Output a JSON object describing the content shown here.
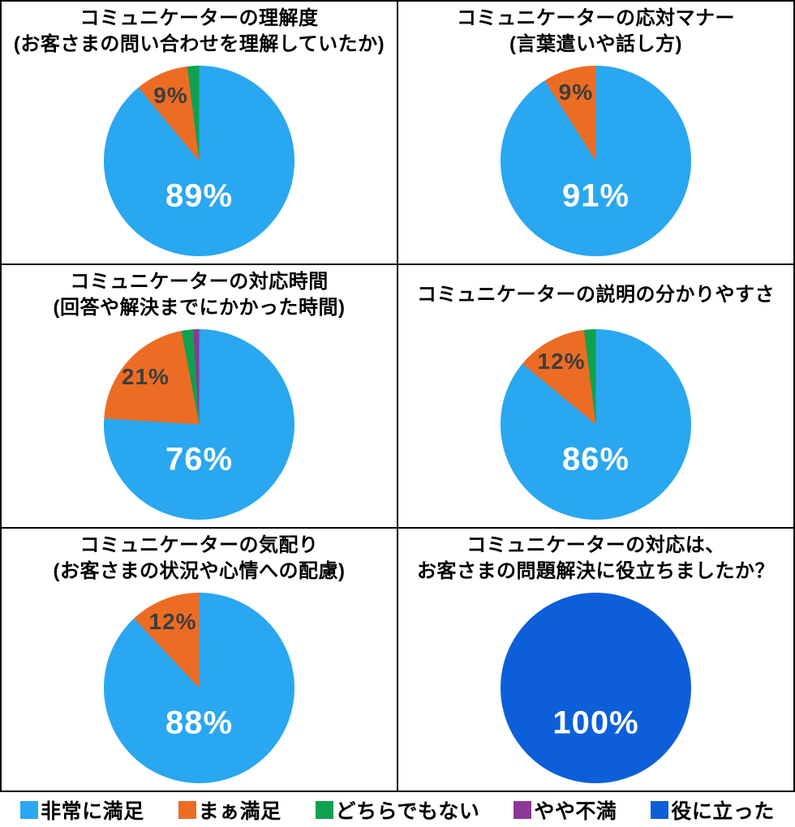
{
  "page": {
    "background_color": "#ffffff",
    "grid_line_color": "#000000"
  },
  "palette": {
    "very_satisfied_blue": "#29A7F0",
    "somewhat_satisfied_orange": "#ED6C23",
    "neutral_green": "#10A14E",
    "somewhat_dissatisfied_purple": "#8C3896",
    "helpful_royal_blue": "#0C5FD8",
    "main_label_color": "#FFFFFF",
    "outer_label_color": "#3D3D3D",
    "title_color": "#000000"
  },
  "legend": {
    "items": [
      {
        "label": "非常に満足",
        "color": "#29A7F0"
      },
      {
        "label": "まぁ満足",
        "color": "#ED6C23"
      },
      {
        "label": "どちらでもない",
        "color": "#10A14E"
      },
      {
        "label": "やや不満",
        "color": "#8C3896"
      },
      {
        "label": "役に立った",
        "color": "#0C5FD8"
      }
    ]
  },
  "chart_data": [
    {
      "type": "pie",
      "title_lines": [
        "コミュニケーターの理解度",
        "(お客さまの問い合わせを理解していたか)"
      ],
      "slices": [
        {
          "name": "非常に満足",
          "value": 89,
          "color": "#29A7F0",
          "label": "89%",
          "label_style": "main"
        },
        {
          "name": "まぁ満足",
          "value": 9,
          "color": "#ED6C23",
          "label": "9%",
          "label_style": "outer"
        },
        {
          "name": "どちらでもない",
          "value": 2,
          "color": "#10A14E",
          "label": "",
          "label_style": "none"
        }
      ]
    },
    {
      "type": "pie",
      "title_lines": [
        "コミュニケーターの応対マナー",
        "(言葉遣いや話し方)"
      ],
      "slices": [
        {
          "name": "非常に満足",
          "value": 91,
          "color": "#29A7F0",
          "label": "91%",
          "label_style": "main"
        },
        {
          "name": "まぁ満足",
          "value": 9,
          "color": "#ED6C23",
          "label": "9%",
          "label_style": "outer"
        }
      ]
    },
    {
      "type": "pie",
      "title_lines": [
        "コミュニケーターの対応時間",
        "(回答や解決までにかかった時間)"
      ],
      "slices": [
        {
          "name": "非常に満足",
          "value": 76,
          "color": "#29A7F0",
          "label": "76%",
          "label_style": "main"
        },
        {
          "name": "まぁ満足",
          "value": 21,
          "color": "#ED6C23",
          "label": "21%",
          "label_style": "outer"
        },
        {
          "name": "どちらでもない",
          "value": 2,
          "color": "#10A14E",
          "label": "",
          "label_style": "none"
        },
        {
          "name": "やや不満",
          "value": 1,
          "color": "#8C3896",
          "label": "",
          "label_style": "none"
        }
      ]
    },
    {
      "type": "pie",
      "title_lines": [
        "コミュニケーターの説明の分かりやすさ"
      ],
      "slices": [
        {
          "name": "非常に満足",
          "value": 86,
          "color": "#29A7F0",
          "label": "86%",
          "label_style": "main"
        },
        {
          "name": "まぁ満足",
          "value": 12,
          "color": "#ED6C23",
          "label": "12%",
          "label_style": "outer"
        },
        {
          "name": "どちらでもない",
          "value": 2,
          "color": "#10A14E",
          "label": "",
          "label_style": "none"
        }
      ]
    },
    {
      "type": "pie",
      "title_lines": [
        "コミュニケーターの気配り",
        "(お客さまの状況や心情への配慮)"
      ],
      "slices": [
        {
          "name": "非常に満足",
          "value": 88,
          "color": "#29A7F0",
          "label": "88%",
          "label_style": "main"
        },
        {
          "name": "まぁ満足",
          "value": 12,
          "color": "#ED6C23",
          "label": "12%",
          "label_style": "outer"
        }
      ]
    },
    {
      "type": "pie",
      "title_lines": [
        "コミュニケーターの対応は、",
        "お客さまの問題解決に役立ちましたか？"
      ],
      "slices": [
        {
          "name": "役に立った",
          "value": 100,
          "color": "#0C5FD8",
          "label": "100%",
          "label_style": "main"
        }
      ]
    }
  ]
}
